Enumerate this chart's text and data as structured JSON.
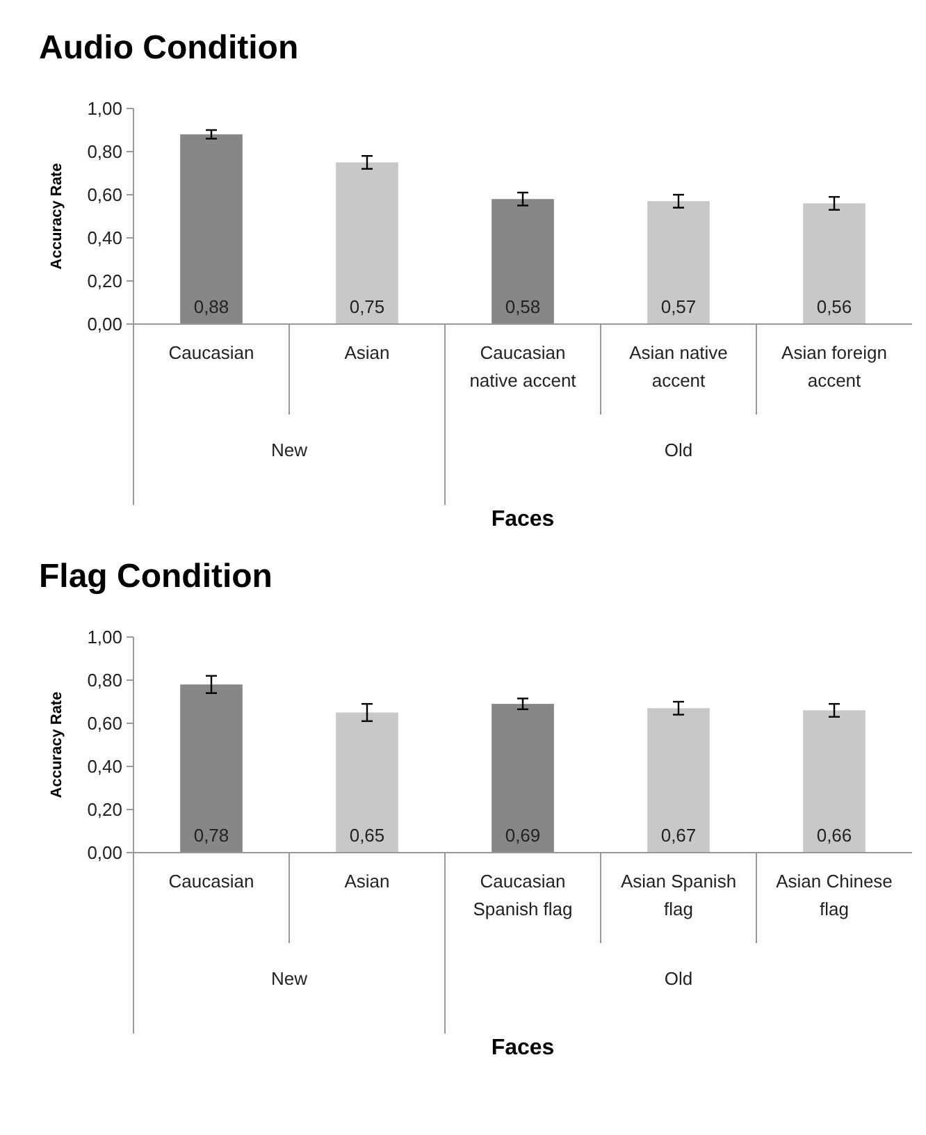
{
  "chart_data": [
    {
      "type": "bar",
      "title": "Audio Condition",
      "xlabel": "Faces",
      "ylabel": "Accuracy Rate",
      "categories": [
        "Caucasian",
        "Asian",
        "Caucasian native accent",
        "Asian native accent",
        "Asian foreign accent"
      ],
      "values": [
        0.88,
        0.75,
        0.58,
        0.57,
        0.56
      ],
      "colors": [
        "#878787",
        "#c8c8c8",
        "#878787",
        "#c8c8c8",
        "#c8c8c8"
      ],
      "errors": [
        0.02,
        0.03,
        0.03,
        0.03,
        0.03
      ],
      "value_labels": [
        "0,88",
        "0,75",
        "0,58",
        "0,57",
        "0,56"
      ],
      "annotations": [
        "New",
        "Old"
      ],
      "ylim": [
        0,
        1
      ],
      "yticks": [
        {
          "value": 0,
          "label": "0,00"
        },
        {
          "value": 0.2,
          "label": "0,20"
        },
        {
          "value": 0.4,
          "label": "0,40"
        },
        {
          "value": 0.6,
          "label": "0,60"
        },
        {
          "value": 0.8,
          "label": "0,80"
        },
        {
          "value": 1,
          "label": "1,00"
        }
      ],
      "grid": false
    },
    {
      "type": "bar",
      "title": "Flag Condition",
      "xlabel": "Faces",
      "ylabel": "Accuracy Rate",
      "categories": [
        "Caucasian",
        "Asian",
        "Caucasian Spanish flag",
        "Asian Spanish flag",
        "Asian Chinese flag"
      ],
      "values": [
        0.78,
        0.65,
        0.69,
        0.67,
        0.66
      ],
      "colors": [
        "#878787",
        "#c8c8c8",
        "#878787",
        "#c8c8c8",
        "#c8c8c8"
      ],
      "errors": [
        0.04,
        0.04,
        0.025,
        0.03,
        0.03
      ],
      "value_labels": [
        "0,78",
        "0,65",
        "0,69",
        "0,67",
        "0,66"
      ],
      "annotations": [
        "New",
        "Old"
      ],
      "ylim": [
        0,
        1
      ],
      "yticks": [
        {
          "value": 0,
          "label": "0,00"
        },
        {
          "value": 0.2,
          "label": "0,20"
        },
        {
          "value": 0.4,
          "label": "0,40"
        },
        {
          "value": 0.6,
          "label": "0,60"
        },
        {
          "value": 0.8,
          "label": "0,80"
        },
        {
          "value": 1,
          "label": "1,00"
        }
      ],
      "grid": false
    }
  ]
}
